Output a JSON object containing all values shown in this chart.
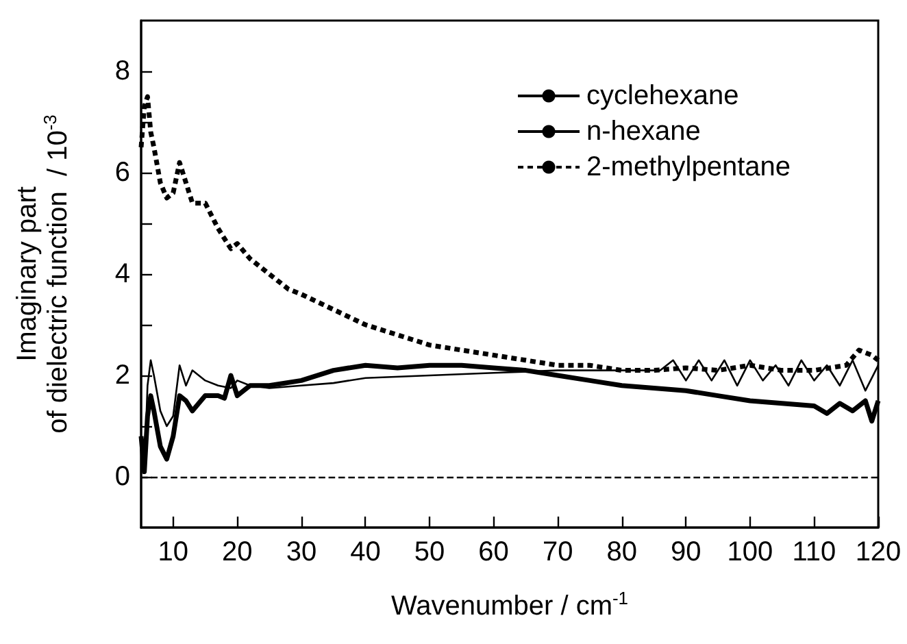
{
  "chart_data": {
    "type": "line",
    "xlabel": "Wavenumber / cm$^{-1}$",
    "ylabel": "Imaginary part\nof dielectric function  / 10$^{-3}$",
    "xlim": [
      5,
      120
    ],
    "xticks": [
      10,
      20,
      30,
      40,
      50,
      60,
      70,
      80,
      90,
      100,
      110,
      120
    ],
    "ylim": [
      -1,
      9
    ],
    "yticks": [
      0,
      {
        "value": 1,
        "label": null
      },
      2,
      {
        "value": 3,
        "label": null
      },
      4,
      {
        "value": 5,
        "label": null
      },
      6,
      {
        "value": 7,
        "label": null
      },
      8
    ],
    "grid": false,
    "legend": "top right",
    "marker": "none",
    "ref_lines": [
      {
        "axis": "y",
        "value": 0,
        "color": "#000000",
        "line_style": "dashed"
      }
    ],
    "series": [
      {
        "name": "cyclehexane",
        "color": "#000000",
        "line_style": "solid",
        "x": [
          5,
          5.5,
          6,
          6.5,
          7,
          8,
          9,
          10,
          11,
          12,
          13,
          15,
          17,
          18,
          19,
          20,
          22,
          25,
          30,
          35,
          40,
          45,
          50,
          55,
          60,
          65,
          70,
          75,
          80,
          85,
          90,
          95,
          100,
          105,
          110,
          112,
          114,
          116,
          118,
          119,
          120
        ],
        "values": [
          0.8,
          0.1,
          1.2,
          1.6,
          1.3,
          0.6,
          0.35,
          0.8,
          1.6,
          1.5,
          1.3,
          1.6,
          1.6,
          1.55,
          2.0,
          1.6,
          1.8,
          1.8,
          1.9,
          2.1,
          2.2,
          2.15,
          2.2,
          2.2,
          2.15,
          2.1,
          2.0,
          1.9,
          1.8,
          1.75,
          1.7,
          1.6,
          1.5,
          1.45,
          1.4,
          1.25,
          1.45,
          1.3,
          1.5,
          1.1,
          1.5
        ]
      },
      {
        "name": "n-hexane",
        "color": "#000000",
        "line_style": "solid",
        "x": [
          5,
          5.5,
          6,
          6.5,
          7,
          8,
          9,
          10,
          11,
          12,
          13,
          15,
          17,
          19,
          20,
          22,
          25,
          30,
          35,
          40,
          50,
          60,
          70,
          80,
          86,
          88,
          90,
          92,
          94,
          96,
          98,
          100,
          102,
          104,
          106,
          108,
          110,
          112,
          114,
          116,
          118,
          120
        ],
        "values": [
          0.8,
          0.1,
          1.8,
          2.3,
          2.0,
          1.3,
          1.0,
          1.2,
          2.2,
          1.8,
          2.1,
          1.9,
          1.8,
          1.75,
          1.9,
          1.8,
          1.75,
          1.8,
          1.85,
          1.95,
          2.0,
          2.05,
          2.1,
          2.1,
          2.1,
          2.3,
          1.9,
          2.3,
          1.9,
          2.3,
          1.8,
          2.3,
          1.9,
          2.2,
          1.8,
          2.3,
          1.9,
          2.2,
          1.8,
          2.3,
          1.7,
          2.2
        ]
      },
      {
        "name": "2-methylpentane",
        "color": "#000000",
        "line_style": "dashed",
        "x": [
          5,
          5.5,
          6,
          6.5,
          7,
          8,
          9,
          10,
          11,
          12,
          13,
          15,
          17,
          19,
          20,
          22,
          25,
          28,
          30,
          35,
          40,
          45,
          50,
          55,
          60,
          65,
          70,
          75,
          80,
          85,
          90,
          95,
          100,
          105,
          110,
          115,
          117,
          119,
          120
        ],
        "values": [
          6.5,
          7.3,
          7.5,
          6.8,
          6.5,
          5.8,
          5.5,
          5.6,
          6.2,
          5.8,
          5.4,
          5.4,
          4.9,
          4.5,
          4.6,
          4.3,
          4.0,
          3.7,
          3.6,
          3.3,
          3.0,
          2.8,
          2.6,
          2.5,
          2.4,
          2.3,
          2.2,
          2.2,
          2.1,
          2.1,
          2.15,
          2.1,
          2.2,
          2.1,
          2.1,
          2.2,
          2.5,
          2.4,
          2.3
        ]
      }
    ]
  }
}
